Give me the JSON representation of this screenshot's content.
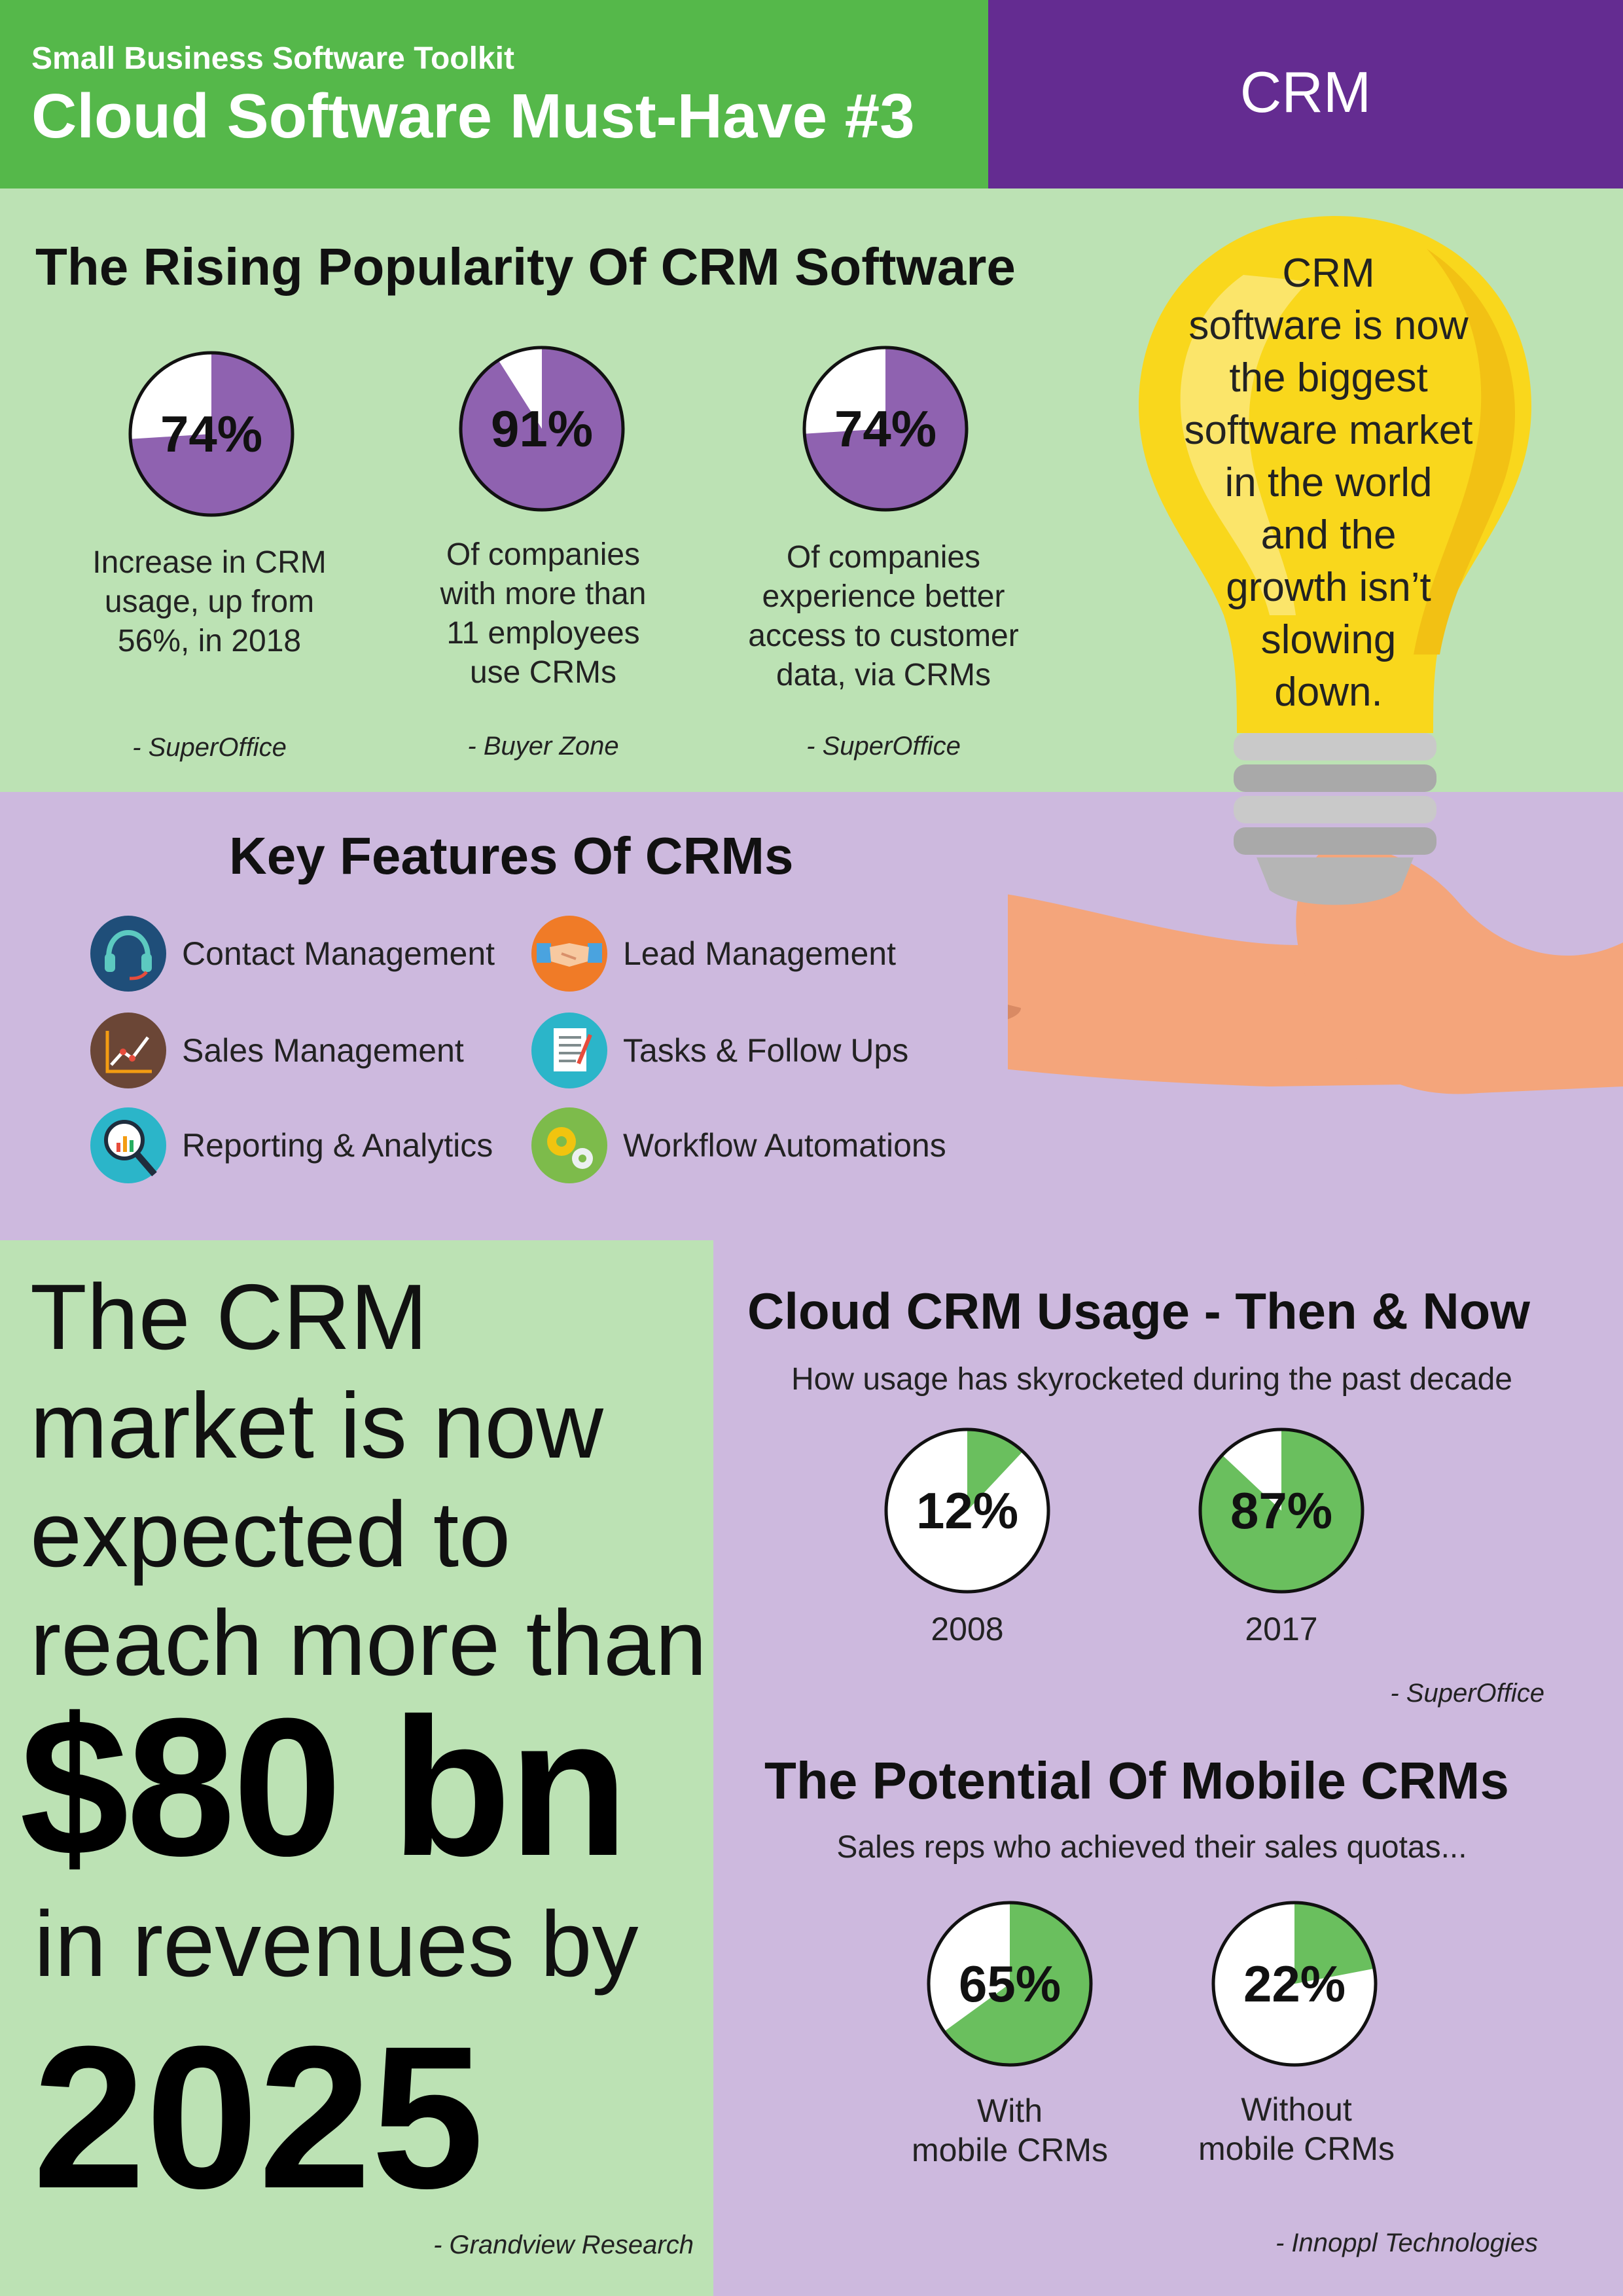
{
  "header": {
    "kicker": "Small Business Software Toolkit",
    "title": "Cloud Software Must-Have #3",
    "category": "CRM"
  },
  "popularity": {
    "title": "The Rising Popularity Of CRM Software",
    "stats": [
      {
        "value": "74%",
        "fraction": 0.74,
        "text": [
          "Increase in CRM",
          "usage, up from",
          "56%, in 2018"
        ],
        "source": "- SuperOffice"
      },
      {
        "value": "91%",
        "fraction": 0.91,
        "text": [
          "Of companies",
          "with more than",
          "11 employees",
          "use CRMs"
        ],
        "source": "- Buyer Zone"
      },
      {
        "value": "74%",
        "fraction": 0.74,
        "text": [
          "Of companies",
          "experience better",
          "access to customer",
          "data, via CRMs"
        ],
        "source": "- SuperOffice"
      }
    ],
    "bulb_text": [
      "CRM",
      "software is now",
      "the biggest",
      "software market",
      "in the world",
      "and the",
      "growth isn’t",
      "slowing",
      "down."
    ]
  },
  "features": {
    "title": "Key Features Of CRMs",
    "items": [
      {
        "label": "Contact Management",
        "icon": "headset-icon"
      },
      {
        "label": "Lead Management",
        "icon": "handshake-icon"
      },
      {
        "label": "Sales Management",
        "icon": "sales-chart-icon"
      },
      {
        "label": "Tasks & Follow Ups",
        "icon": "checklist-icon"
      },
      {
        "label": "Reporting & Analytics",
        "icon": "magnifier-icon"
      },
      {
        "label": "Workflow Automations",
        "icon": "gears-icon"
      }
    ]
  },
  "market": {
    "lines": [
      "The CRM",
      "market is now",
      "expected to",
      "reach more than"
    ],
    "amount": "$80 bn",
    "in_revenues": "in revenues by",
    "year": "2025",
    "source": "- Grandview Research"
  },
  "cloud_usage": {
    "title": "Cloud CRM Usage - Then & Now",
    "subtitle": "How usage has skyrocketed during the past decade",
    "items": [
      {
        "value": "12%",
        "fraction": 0.12,
        "year": "2008"
      },
      {
        "value": "87%",
        "fraction": 0.87,
        "year": "2017"
      }
    ],
    "source": "- SuperOffice"
  },
  "mobile": {
    "title": "The Potential Of Mobile CRMs",
    "subtitle": "Sales reps who achieved their sales quotas...",
    "items": [
      {
        "value": "65%",
        "fraction": 0.65,
        "label": [
          "With",
          "mobile CRMs"
        ]
      },
      {
        "value": "22%",
        "fraction": 0.22,
        "label": [
          "Without",
          "mobile CRMs"
        ]
      }
    ],
    "source": "- Innoppl Technologies"
  },
  "colors": {
    "green": "#55b84a",
    "light_green": "#bce2b4",
    "purple": "#642c91",
    "light_purple": "#cdb9de",
    "pie_purple": "#8f62b0",
    "pie_green": "#6abf5e"
  }
}
